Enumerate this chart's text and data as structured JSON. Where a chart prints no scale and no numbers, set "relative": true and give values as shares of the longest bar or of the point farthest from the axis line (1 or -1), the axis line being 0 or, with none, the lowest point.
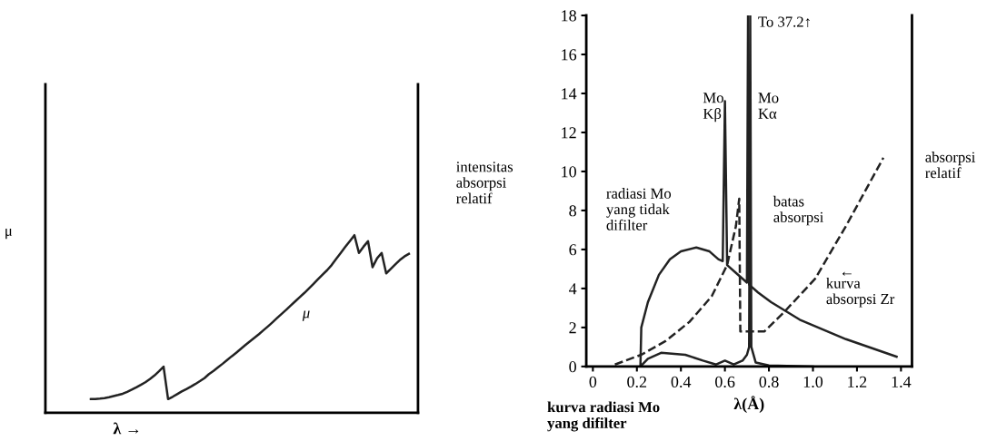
{
  "chart_data": [
    {
      "type": "line",
      "relative": true,
      "xlabel": "λ →",
      "ylabel": "μ",
      "annotations": [
        "μ"
      ],
      "categories": [
        null,
        null,
        null,
        null,
        null,
        null,
        null,
        null,
        null,
        null,
        null,
        null,
        null,
        null,
        null,
        null,
        null,
        null,
        null,
        null,
        null,
        null,
        null,
        null,
        null,
        null,
        null,
        null,
        null,
        null,
        null,
        null,
        null,
        null,
        null,
        null,
        null,
        null,
        null,
        null,
        null,
        null,
        null,
        null,
        null,
        null,
        null,
        null,
        null,
        null,
        null,
        null,
        null,
        null,
        null,
        null,
        null,
        null,
        null,
        null,
        null,
        null,
        null,
        null,
        null,
        null,
        null,
        null,
        null,
        null,
        null,
        null,
        null,
        null,
        null,
        null,
        null,
        null,
        null,
        null,
        null,
        null,
        null
      ],
      "series": [
        {
          "color": "#222222",
          "values": [
            null,
            null,
            null,
            null,
            null,
            null,
            null,
            null,
            null,
            null,
            0.077,
            0.078,
            0.08,
            0.083,
            0.088,
            0.094,
            0.1,
            0.107,
            0.118,
            0.13,
            0.143,
            0.157,
            0.172,
            0.19,
            0.21,
            0.234,
            0.26,
            0.077,
            0.09,
            0.105,
            0.12,
            0.133,
            0.147,
            0.162,
            0.178,
            0.195,
            0.218,
            0.236,
            0.256,
            0.276,
            0.297,
            0.318,
            0.338,
            0.36,
            0.381,
            0.402,
            0.422,
            0.443,
            0.465,
            0.487,
            0.51,
            0.534,
            0.557,
            0.58,
            0.604,
            0.628,
            0.652,
            0.675,
            0.7,
            0.726,
            0.752,
            0.778,
            0.803,
            0.832,
            0.867,
            0.9,
            0.934,
            0.967,
            1.0,
            0.9,
            0.935,
            0.966,
            0.82,
            0.87,
            0.9,
            0.785,
            0.81,
            0.835,
            0.86,
            0.88,
            0.895,
            null,
            null
          ]
        }
      ]
    },
    {
      "type": "line",
      "xlabel": "λ(Å)",
      "ylabel": "intensitas\nabsorpsi\nrelatif",
      "y2label": "absorpsi\nrelatif",
      "xlim": [
        -0.03,
        1.45
      ],
      "ylim": [
        0,
        18
      ],
      "xticks": [
        0,
        0.2,
        0.4,
        0.6,
        0.8,
        {
          "value": 1,
          "label": "1.0"
        },
        1.2,
        1.4
      ],
      "yticks": [
        0,
        2,
        4,
        6,
        8,
        10,
        12,
        14,
        16,
        18
      ],
      "series": [
        {
          "color": "#222222",
          "line_style": "solid",
          "x": [
            0.216,
            0.22,
            0.25,
            0.3,
            0.35,
            0.4,
            0.47,
            0.53,
            0.57,
            0.59,
            0.6,
            0.61,
            0.65,
            0.69,
            0.7,
            0.705,
            0.71,
            0.75,
            0.81,
            0.94,
            1.15,
            1.38
          ],
          "values": [
            0,
            2.0,
            3.3,
            4.7,
            5.5,
            5.9,
            6.1,
            5.9,
            5.5,
            5.4,
            13.6,
            5.2,
            4.8,
            4.4,
            4.3,
            18,
            4.2,
            3.8,
            3.3,
            2.4,
            1.4,
            0.5
          ]
        },
        {
          "color": "#222222",
          "line_style": "solid",
          "x": [
            0.216,
            0.25,
            0.31,
            0.42,
            0.5,
            0.56,
            0.6,
            0.64,
            0.68,
            0.7,
            0.71,
            0.715,
            0.72,
            0.74,
            0.8,
            1.0
          ],
          "values": [
            0,
            0.4,
            0.7,
            0.6,
            0.3,
            0.1,
            0.3,
            0.1,
            0.3,
            0.6,
            1.0,
            18,
            1.0,
            0.2,
            0.05,
            0
          ]
        },
        {
          "color": "#222222",
          "line_style": "dashed",
          "x": [
            0.1,
            0.22,
            0.33,
            0.44,
            0.54,
            0.61,
            0.65,
            0.665,
            0.67,
            0.78,
            0.87,
            1.01,
            1.15,
            1.32
          ],
          "values": [
            0.1,
            0.6,
            1.3,
            2.3,
            3.6,
            5.2,
            7.2,
            8.6,
            1.8,
            1.8,
            2.8,
            4.5,
            7.2,
            10.7
          ]
        }
      ],
      "annotations": [
        "Mo\nKβ",
        "Mo\nKα",
        "To 37.2↑",
        "radiasi Mo\nyang tidak\ndifilter",
        "batas\nabsorpsi",
        "←",
        "kurva\nabsorpsi Zr",
        "kurva radiasi Mo\nyang difilter"
      ]
    }
  ]
}
